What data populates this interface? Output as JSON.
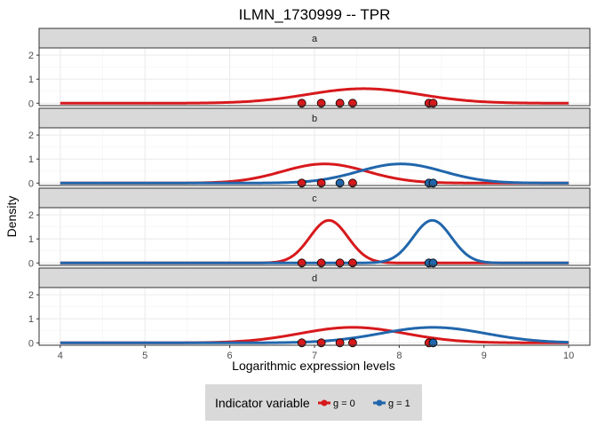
{
  "chart_data": {
    "type": "line",
    "title": "ILMN_1730999 -- TPR",
    "xlabel": "Logarithmic expression levels",
    "ylabel": "Density",
    "xlim": [
      3.75,
      10.25
    ],
    "ylim": [
      -0.1,
      2.3
    ],
    "x_ticks": [
      4,
      5,
      6,
      7,
      8,
      9,
      10
    ],
    "y_ticks": [
      0,
      1,
      2
    ],
    "grid": true,
    "legend": {
      "title": "Indicator variable",
      "position": "bottom",
      "entries": [
        {
          "label": "g = 0",
          "color": "#D7191C"
        },
        {
          "label": "g = 1",
          "color": "#2166AC"
        }
      ]
    },
    "colors": {
      "g0": "#D7191C",
      "g1": "#2166AC",
      "strip": "#D9D9D9",
      "grid": "#EBEBEB"
    },
    "points": {
      "g0": [
        6.85,
        7.08,
        7.3,
        7.45
      ],
      "g1": [
        8.35,
        8.4
      ]
    },
    "panels": [
      {
        "label": "a",
        "curves": [
          {
            "group": "g0",
            "mean": 7.58,
            "sd": 0.66,
            "weight": 1.0
          }
        ],
        "point_colors": [
          "g0",
          "g0",
          "g0",
          "g0",
          "g0",
          "g0"
        ]
      },
      {
        "label": "b",
        "curves": [
          {
            "group": "g0",
            "mean": 7.12,
            "sd": 0.5,
            "weight": 1.0
          },
          {
            "group": "g1",
            "mean": 8.02,
            "sd": 0.5,
            "weight": 1.0
          }
        ],
        "point_colors": [
          "g0",
          "g0",
          "g1",
          "g0",
          "g1",
          "g1"
        ]
      },
      {
        "label": "c",
        "curves": [
          {
            "group": "g0",
            "mean": 7.17,
            "sd": 0.225,
            "weight": 1.0
          },
          {
            "group": "g1",
            "mean": 8.39,
            "sd": 0.225,
            "weight": 1.0
          }
        ],
        "point_colors": [
          "g0",
          "g0",
          "g0",
          "g0",
          "g1",
          "g1"
        ]
      },
      {
        "label": "d",
        "curves": [
          {
            "group": "g0",
            "mean": 7.45,
            "sd": 0.62,
            "weight": 1.0
          },
          {
            "group": "g1",
            "mean": 8.4,
            "sd": 0.62,
            "weight": 1.0
          }
        ],
        "point_colors": [
          "g0",
          "g0",
          "g0",
          "g0",
          "g0",
          "g1"
        ]
      }
    ]
  }
}
